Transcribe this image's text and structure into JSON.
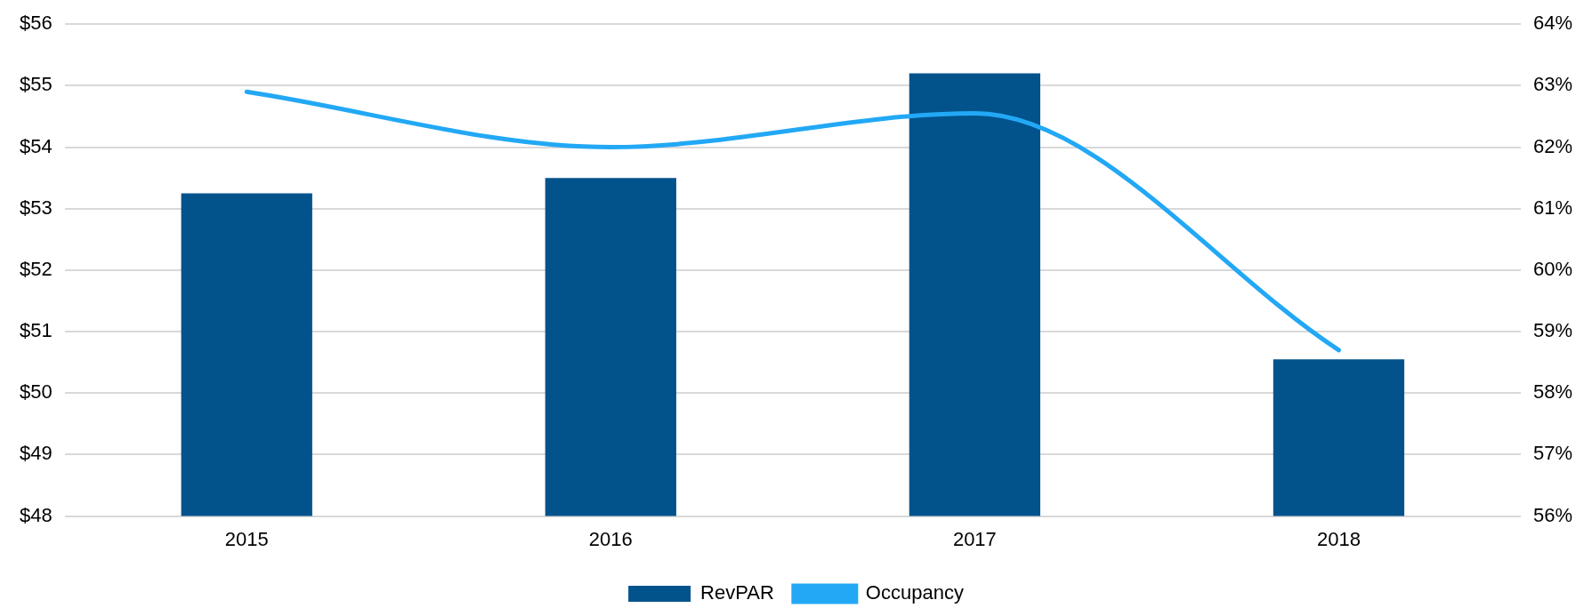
{
  "chart_data": {
    "type": "bar",
    "categories": [
      "2015",
      "2016",
      "2017",
      "2018"
    ],
    "series": [
      {
        "name": "RevPAR",
        "color": "#02538b",
        "values": [
          53.25,
          53.5,
          55.2,
          50.55
        ]
      },
      {
        "name": "Occupancy",
        "type": "line",
        "axis": "y2",
        "color": "#22a8f5",
        "values": [
          62.9,
          62.0,
          62.55,
          58.7
        ]
      }
    ],
    "ylim": [
      48,
      56
    ],
    "yticks": [
      {
        "value": 48,
        "label": "$48"
      },
      {
        "value": 49,
        "label": "$49"
      },
      {
        "value": 50,
        "label": "$50"
      },
      {
        "value": 51,
        "label": "$51"
      },
      {
        "value": 52,
        "label": "$52"
      },
      {
        "value": 53,
        "label": "$53"
      },
      {
        "value": 54,
        "label": "$54"
      },
      {
        "value": 55,
        "label": "$55"
      },
      {
        "value": 56,
        "label": "$56"
      }
    ],
    "y2lim": [
      56,
      64
    ],
    "y2ticks": [
      {
        "value": 56,
        "label": "56%"
      },
      {
        "value": 57,
        "label": "57%"
      },
      {
        "value": 58,
        "label": "58%"
      },
      {
        "value": 59,
        "label": "59%"
      },
      {
        "value": 60,
        "label": "60%"
      },
      {
        "value": 61,
        "label": "61%"
      },
      {
        "value": 62,
        "label": "62%"
      },
      {
        "value": 63,
        "label": "63%"
      },
      {
        "value": 64,
        "label": "64%"
      }
    ],
    "grid": "y",
    "legend": "bottom",
    "marker": "none"
  }
}
